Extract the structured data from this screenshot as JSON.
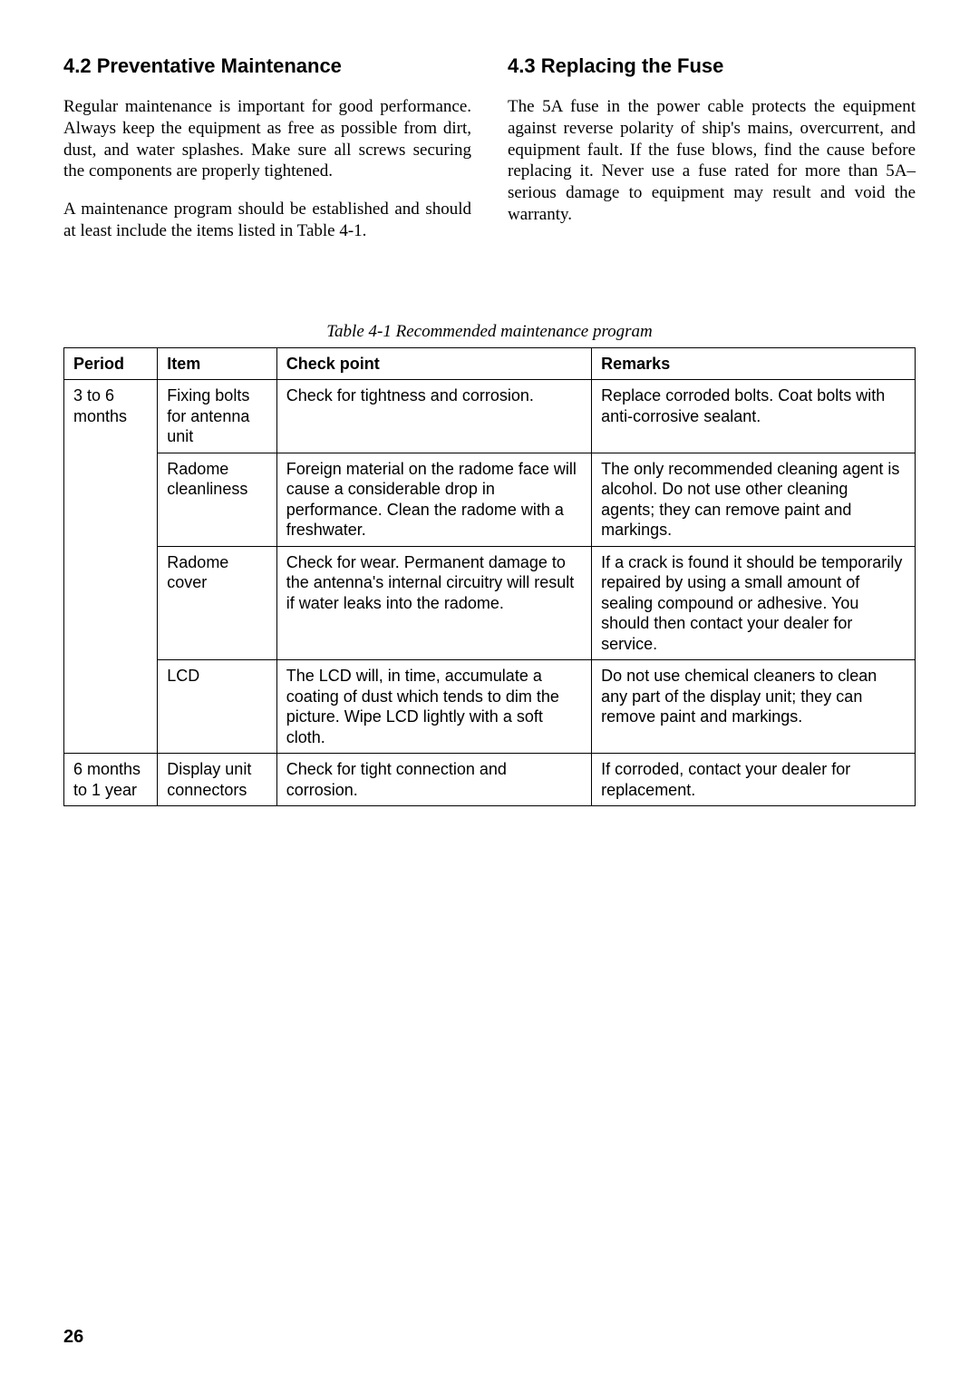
{
  "left": {
    "heading": "4.2 Preventative Maintenance",
    "p1": "Regular maintenance is important for good performance. Always keep the equipment as free as possible from dirt, dust, and water splashes. Make sure all screws securing the components are properly tightened.",
    "p2": "A maintenance program should be established and should at least include the items listed in Table 4-1."
  },
  "right": {
    "heading": "4.3 Replacing the Fuse",
    "p1": "The 5A fuse in the power cable protects the equipment against reverse polarity of ship's mains, overcurrent, and equipment fault. If the fuse blows, find the cause before replacing it. Never use a fuse rated for more than 5A–serious damage to equipment may result and void the warranty."
  },
  "table": {
    "caption": "Table 4-1 Recommended maintenance program",
    "headers": {
      "period": "Period",
      "item": "Item",
      "check": "Check point",
      "remarks": "Remarks"
    },
    "rows": [
      {
        "period": "3 to 6 months",
        "item": "Fixing bolts for antenna unit",
        "check": "Check for tightness and corrosion.",
        "remarks": "Replace corroded bolts. Coat bolts with anti-corrosive sealant."
      },
      {
        "item": "Radome cleanliness",
        "check": "Foreign material on the radome face will cause a considerable drop in performance. Clean the radome with a freshwater.",
        "remarks": "The only recommended cleaning agent is alcohol. Do not use other cleaning agents; they can remove paint and markings."
      },
      {
        "item": "Radome cover",
        "check": "Check for wear. Permanent damage to the antenna's internal circuitry will result if water leaks into the radome.",
        "remarks": "If a crack is found it should be temporarily repaired by using a small amount of sealing compound or adhesive. You should then contact your dealer for service."
      },
      {
        "item": "LCD",
        "check": "The LCD will, in time, accumulate a coating of dust which tends to dim the picture. Wipe LCD lightly with a soft cloth.",
        "remarks": "Do not use chemical cleaners to clean any part of the display unit; they can remove paint and markings."
      },
      {
        "period": "6 months to 1 year",
        "item": "Display unit connectors",
        "check": "Check for tight connection and corrosion.",
        "remarks": "If corroded, contact your dealer for replacement."
      }
    ]
  },
  "pageNumber": "26"
}
